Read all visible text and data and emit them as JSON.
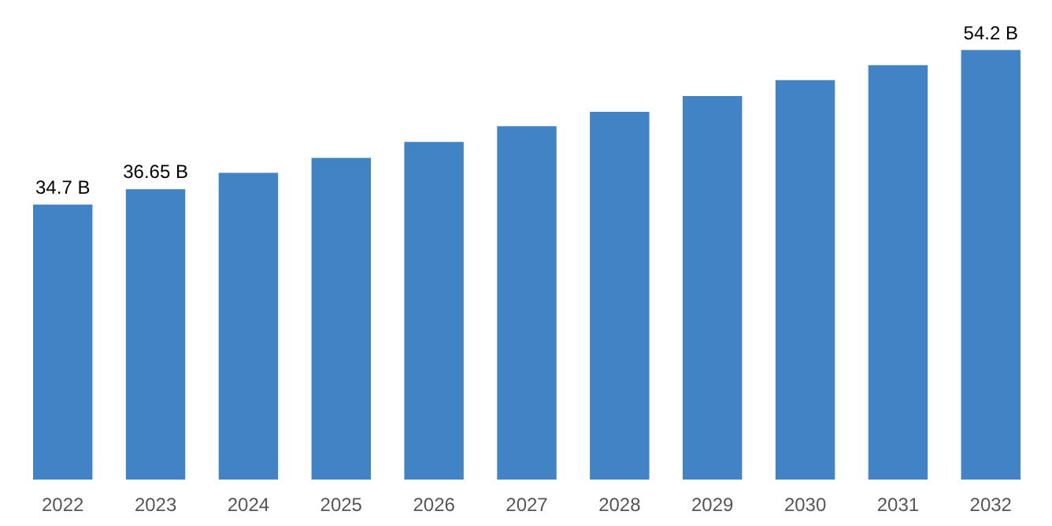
{
  "chart_data": {
    "type": "bar",
    "categories": [
      "2022",
      "2023",
      "2024",
      "2025",
      "2026",
      "2027",
      "2028",
      "2029",
      "2030",
      "2031",
      "2032"
    ],
    "values": [
      34.7,
      36.65,
      38.7,
      40.6,
      42.6,
      44.6,
      46.4,
      48.4,
      50.4,
      52.3,
      54.2
    ],
    "value_labels": [
      "34.7 B",
      "36.65 B",
      null,
      null,
      null,
      null,
      null,
      null,
      null,
      null,
      "54.2 B"
    ],
    "color": "#4283c6",
    "grid": false,
    "tick_labels": "x"
  }
}
